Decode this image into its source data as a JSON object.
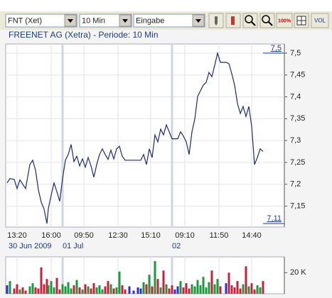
{
  "toolbar": {
    "dropdowns": [
      "FNT (Xet)",
      "10 Min",
      "Eingabe"
    ],
    "zoom_label": "100%",
    "vol_label": "VOL"
  },
  "chart_data": {
    "type": "line",
    "title": "FREENET AG (Xetra) - Periode: 10 Min",
    "color": "#1c2a78",
    "grid": true,
    "x": [
      1,
      2,
      3.5,
      4.5,
      5.5,
      6.5,
      7.5,
      9,
      10,
      11,
      12,
      13,
      14,
      15,
      15.5,
      16.5,
      17.5,
      18.5,
      19.5,
      20.5,
      21.5,
      22.5,
      23.5,
      24.5,
      25.5,
      26.5,
      27.5,
      28.5,
      29.5,
      30.5,
      31.5,
      32.5,
      33.5,
      34.5,
      35.5,
      36.5,
      37.5,
      38.5,
      39.5,
      40.5,
      41.5,
      42.5,
      44,
      45.5,
      47,
      48,
      49,
      50,
      51,
      52,
      53,
      54,
      55,
      56,
      57,
      58,
      59,
      60,
      61,
      62,
      63,
      64,
      65,
      66,
      67,
      68,
      69,
      70,
      71,
      72,
      73,
      74,
      75,
      76,
      78,
      79,
      80,
      81,
      82,
      83,
      84,
      85,
      86,
      87,
      88,
      89,
      90,
      91
    ],
    "values": [
      7.203,
      7.213,
      7.211,
      7.19,
      7.21,
      7.2,
      7.19,
      7.245,
      7.255,
      7.232,
      7.187,
      7.159,
      7.143,
      7.11,
      7.144,
      7.175,
      7.203,
      7.183,
      7.161,
      7.213,
      7.255,
      7.268,
      7.291,
      7.252,
      7.264,
      7.242,
      7.258,
      7.239,
      7.261,
      7.242,
      7.216,
      7.245,
      7.268,
      7.281,
      7.268,
      7.257,
      7.278,
      7.258,
      7.281,
      7.287,
      7.264,
      7.255,
      7.255,
      7.255,
      7.255,
      7.255,
      7.268,
      7.245,
      7.281,
      7.261,
      7.313,
      7.297,
      7.326,
      7.313,
      7.336,
      7.32,
      7.304,
      7.304,
      7.304,
      7.32,
      7.31,
      7.297,
      7.268,
      7.32,
      7.349,
      7.401,
      7.414,
      7.427,
      7.433,
      7.456,
      7.446,
      7.472,
      7.5,
      7.479,
      7.479,
      7.476,
      7.453,
      7.427,
      7.385,
      7.362,
      7.378,
      7.355,
      7.378,
      7.333,
      7.245,
      7.261,
      7.281,
      7.275
    ],
    "xlim": [
      0.5,
      98.5
    ],
    "ylim": [
      7.102,
      7.521
    ],
    "xticks": [
      {
        "value": 4.5,
        "label": "13:20"
      },
      {
        "value": 16.5,
        "label": "16:00"
      },
      {
        "value": 28,
        "label": "09:50"
      },
      {
        "value": 40,
        "label": "12:30"
      },
      {
        "value": 51.5,
        "label": "15:10"
      },
      {
        "value": 63.5,
        "label": "09:10"
      },
      {
        "value": 75.5,
        "label": "11:50"
      },
      {
        "value": 87,
        "label": "14:40"
      }
    ],
    "date_labels": [
      {
        "value": 1.5,
        "label": "30 Jun 2009"
      },
      {
        "value": 20.5,
        "label": "01 Jul"
      },
      {
        "value": 59,
        "label": "02"
      }
    ],
    "yticks": [
      {
        "value": 7.5,
        "label": "7,5"
      },
      {
        "value": 7.45,
        "label": "7,45"
      },
      {
        "value": 7.4,
        "label": "7,4"
      },
      {
        "value": 7.35,
        "label": "7,35"
      },
      {
        "value": 7.3,
        "label": "7,3"
      },
      {
        "value": 7.25,
        "label": "7,25"
      },
      {
        "value": 7.2,
        "label": "7,2"
      },
      {
        "value": 7.15,
        "label": "7,15"
      }
    ],
    "max_label": {
      "value": 7.5,
      "label": "7,5"
    },
    "min_label": {
      "value": 7.11,
      "label": "7,11"
    },
    "volume": {
      "values": [
        8000,
        12000,
        5000,
        9000,
        4000,
        6000,
        3000,
        7000,
        10000,
        6000,
        5000,
        25000,
        9000,
        14000,
        8000,
        12000,
        6000,
        15000,
        4000,
        9000,
        7000,
        11000,
        5000,
        8000,
        13000,
        6000,
        4000,
        9000,
        7000,
        5000,
        10000,
        6000,
        8000,
        4000,
        7000,
        12000,
        9000,
        5000,
        6000,
        21000,
        8000,
        4000,
        7000,
        3000,
        6000,
        5000,
        11000,
        9000,
        18000,
        7000,
        31000,
        14000,
        6000,
        22000,
        9000,
        5000,
        8000,
        4000,
        7000,
        12000,
        6000,
        10000,
        5000,
        9000,
        7000,
        13000,
        8000,
        16000,
        6000,
        11000,
        22000,
        9000,
        14000,
        7000,
        10000,
        20000,
        8000,
        6000,
        12000,
        5000,
        9000,
        26000,
        7000,
        10000,
        4000,
        8000,
        6000,
        12000
      ],
      "ylim": [
        0,
        35000
      ],
      "yticks": [
        {
          "value": 20000,
          "label": "20 K"
        }
      ],
      "up_color": "#1a9a3a",
      "down_color": "#c8203c",
      "flat_color": "#3030b8"
    }
  }
}
